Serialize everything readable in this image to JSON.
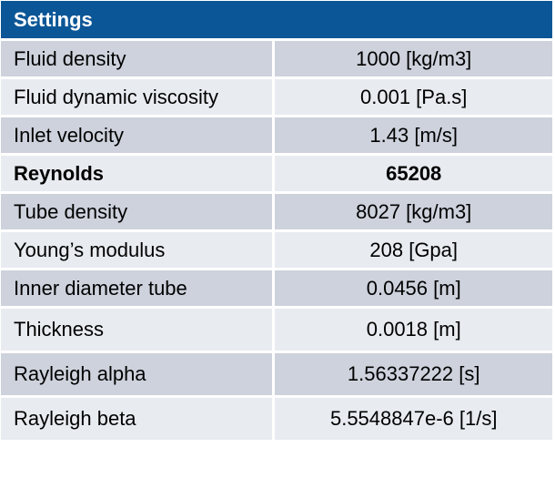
{
  "table": {
    "header": "Settings",
    "rows": [
      {
        "label": "Fluid density",
        "value": "1000 [kg/m3]"
      },
      {
        "label": "Fluid dynamic viscosity",
        "value": "0.001 [Pa.s]"
      },
      {
        "label": "Inlet velocity",
        "value": "1.43 [m/s]"
      },
      {
        "label": "Reynolds",
        "value": "65208"
      },
      {
        "label": "Tube density",
        "value": "8027 [kg/m3]"
      },
      {
        "label": "Young’s modulus",
        "value": "208 [Gpa]"
      },
      {
        "label": "Inner diameter tube",
        "value": "0.0456 [m]"
      },
      {
        "label": "Thickness",
        "value": "0.0018 [m]"
      },
      {
        "label": "Rayleigh alpha",
        "value": "1.56337222 [s]"
      },
      {
        "label": "Rayleigh beta",
        "value": "5.5548847e-6 [1/s]"
      }
    ]
  },
  "colors": {
    "header_bg": "#0b5696",
    "row_dark": "#cdd2dc",
    "row_light": "#e8ebf0"
  }
}
